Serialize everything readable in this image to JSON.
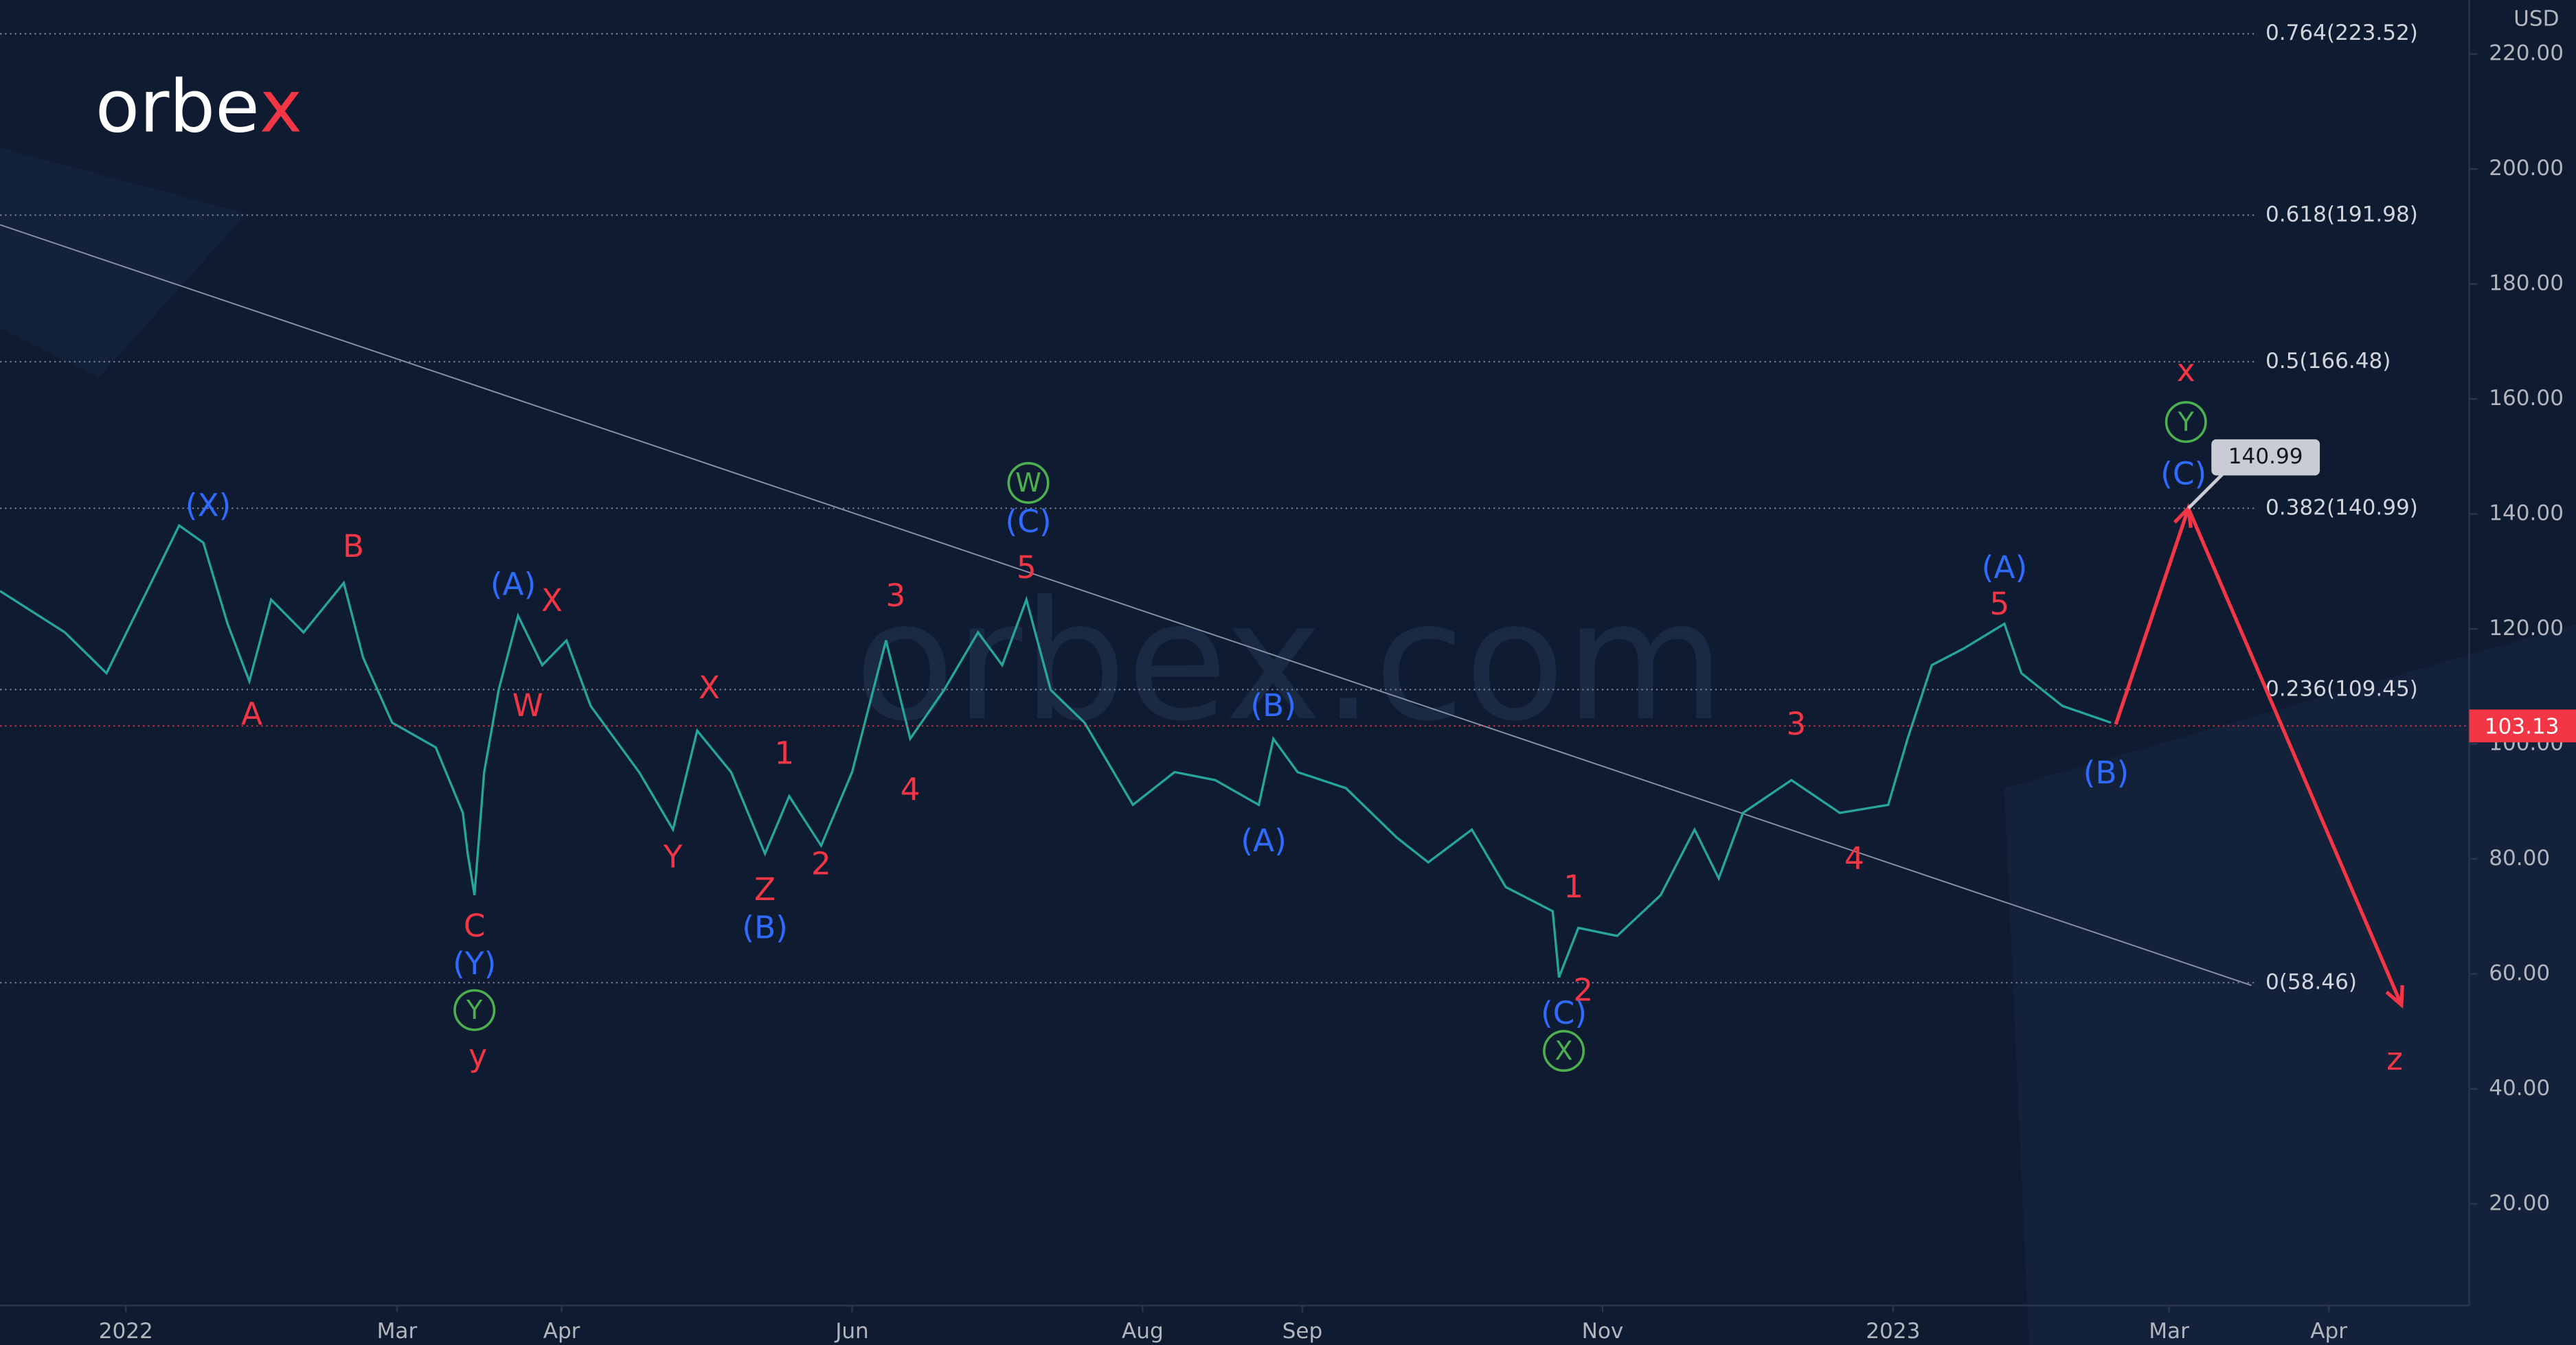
{
  "chart_data": {
    "type": "line",
    "logo_main": "orbe",
    "logo_accent": "x",
    "watermark": "orbex.com",
    "currency": "USD",
    "color": "#26a69a",
    "xlim": [
      -26,
      484
    ],
    "ylim": [
      2.3,
      229.4
    ],
    "xticks": [
      {
        "value": 0,
        "label": "2022"
      },
      {
        "value": 56,
        "label": "Mar"
      },
      {
        "value": 90,
        "label": "Apr"
      },
      {
        "value": 150,
        "label": "Jun"
      },
      {
        "value": 210,
        "label": "Aug"
      },
      {
        "value": 243,
        "label": "Sep"
      },
      {
        "value": 305,
        "label": "Nov"
      },
      {
        "value": 365,
        "label": "2023"
      },
      {
        "value": 422,
        "label": "Mar"
      },
      {
        "value": 455,
        "label": "Apr"
      }
    ],
    "yticks": [
      {
        "value": 20,
        "label": "20.00"
      },
      {
        "value": 40,
        "label": "40.00"
      },
      {
        "value": 60,
        "label": "60.00"
      },
      {
        "value": 80,
        "label": "80.00"
      },
      {
        "value": 100,
        "label": "100.00"
      },
      {
        "value": 120,
        "label": "120.00"
      },
      {
        "value": 140,
        "label": "140.00"
      },
      {
        "value": 160,
        "label": "160.00"
      },
      {
        "value": 180,
        "label": "180.00"
      },
      {
        "value": 200,
        "label": "200.00"
      },
      {
        "value": 220,
        "label": "220.00"
      }
    ],
    "x": [
      -26,
      -12.6,
      -4,
      6,
      11,
      16,
      21,
      25.5,
      30,
      36.7,
      45,
      49,
      55,
      64,
      69.6,
      70.6,
      72,
      74,
      77,
      81,
      86,
      91,
      96,
      106,
      113,
      118,
      125,
      132,
      137,
      143.6,
      150,
      157,
      162,
      169,
      176,
      181,
      186,
      191,
      198,
      208,
      216.6,
      225,
      234,
      237,
      242,
      252,
      262.5,
      269,
      278,
      285,
      294.7,
      296,
      300,
      308,
      317,
      324,
      329,
      334,
      344,
      354,
      364,
      368,
      373,
      379.6,
      388,
      391.5,
      400,
      410
    ],
    "values": [
      126.6,
      119.4,
      112.3,
      129.4,
      138,
      135,
      120.9,
      110.9,
      125.1,
      119.4,
      128,
      115,
      103.7,
      99.4,
      88,
      80.9,
      73.7,
      95.1,
      109.4,
      122.3,
      113.7,
      118,
      106.6,
      95.1,
      85.1,
      102.3,
      95.1,
      80.9,
      90.9,
      82.3,
      95.1,
      118,
      100.9,
      109.4,
      119.4,
      113.7,
      125.1,
      109.4,
      103.7,
      89.4,
      95.1,
      93.7,
      89.4,
      100.9,
      95.1,
      92.3,
      83.7,
      79.4,
      85.1,
      75.1,
      70.9,
      59.4,
      68,
      66.6,
      73.7,
      85.1,
      76.6,
      88,
      93.7,
      88,
      89.4,
      100.9,
      113.7,
      116.6,
      120.9,
      112.3,
      106.6,
      103.7
    ],
    "trendline": {
      "x": [
        -26,
        439
      ],
      "values": [
        190.3,
        58
      ],
      "color": "#8a93a6"
    },
    "projection": {
      "x": [
        411,
        426,
        470
      ],
      "values": [
        103.4,
        140.99,
        54.6
      ],
      "color": "#f23645"
    },
    "fib_levels": [
      {
        "value": 223.52,
        "label": "0.764(223.52)"
      },
      {
        "value": 191.98,
        "label": "0.618(191.98)"
      },
      {
        "value": 166.48,
        "label": "0.5(166.48)"
      },
      {
        "value": 140.99,
        "label": "0.382(140.99)"
      },
      {
        "value": 109.45,
        "label": "0.236(109.45)"
      },
      {
        "value": 58.46,
        "label": "0(58.46)"
      }
    ],
    "last_price": 103.13,
    "target": 140.99,
    "annotations": [
      {
        "text": "(X)",
        "x": 17,
        "y": 141.4,
        "color": "#2f6bff"
      },
      {
        "text": "B",
        "x": 47,
        "y": 134.3,
        "color": "#f23645"
      },
      {
        "text": "A",
        "x": 26,
        "y": 105.1,
        "color": "#f23645"
      },
      {
        "text": "(A)",
        "x": 80,
        "y": 127.7,
        "color": "#2f6bff"
      },
      {
        "text": "X",
        "x": 88,
        "y": 124.9,
        "color": "#f23645"
      },
      {
        "text": "W",
        "x": 83,
        "y": 106.6,
        "color": "#f23645"
      },
      {
        "text": "C",
        "x": 72,
        "y": 68.3,
        "color": "#f23645"
      },
      {
        "text": "(Y)",
        "x": 72,
        "y": 61.7,
        "color": "#2f6bff"
      },
      {
        "text": "Y",
        "x": 72,
        "y": 53.7,
        "color": "#4caf50",
        "circled": true
      },
      {
        "text": "y",
        "x": 72.7,
        "y": 45.7,
        "color": "#f23645"
      },
      {
        "text": "X",
        "x": 120.5,
        "y": 109.7,
        "color": "#f23645"
      },
      {
        "text": "Y",
        "x": 113,
        "y": 80.3,
        "color": "#f23645"
      },
      {
        "text": "1",
        "x": 136,
        "y": 98.3,
        "color": "#f23645"
      },
      {
        "text": "Z",
        "x": 132,
        "y": 74.6,
        "color": "#f23645"
      },
      {
        "text": "(B)",
        "x": 132,
        "y": 68,
        "color": "#2f6bff"
      },
      {
        "text": "2",
        "x": 143.6,
        "y": 79.1,
        "color": "#f23645"
      },
      {
        "text": "3",
        "x": 159,
        "y": 125.7,
        "color": "#f23645"
      },
      {
        "text": "4",
        "x": 162,
        "y": 92,
        "color": "#f23645"
      },
      {
        "text": "W",
        "x": 186.4,
        "y": 145.4,
        "color": "#4caf50",
        "circled": true
      },
      {
        "text": "(C)",
        "x": 186.4,
        "y": 138.6,
        "color": "#2f6bff"
      },
      {
        "text": "5",
        "x": 186,
        "y": 130.6,
        "color": "#f23645"
      },
      {
        "text": "(B)",
        "x": 237,
        "y": 106.6,
        "color": "#2f6bff"
      },
      {
        "text": "(A)",
        "x": 235,
        "y": 83.1,
        "color": "#2f6bff"
      },
      {
        "text": "1",
        "x": 299,
        "y": 75.1,
        "color": "#f23645"
      },
      {
        "text": "2",
        "x": 301,
        "y": 57.1,
        "color": "#f23645"
      },
      {
        "text": "(C)",
        "x": 297,
        "y": 53.1,
        "color": "#2f6bff"
      },
      {
        "text": "X",
        "x": 297,
        "y": 46.6,
        "color": "#4caf50",
        "circled": true
      },
      {
        "text": "3",
        "x": 345,
        "y": 103.4,
        "color": "#f23645"
      },
      {
        "text": "4",
        "x": 357,
        "y": 80,
        "color": "#f23645"
      },
      {
        "text": "(A)",
        "x": 388,
        "y": 130.6,
        "color": "#2f6bff"
      },
      {
        "text": "5",
        "x": 387,
        "y": 124.3,
        "color": "#f23645"
      },
      {
        "text": "(B)",
        "x": 409,
        "y": 94.9,
        "color": "#2f6bff"
      },
      {
        "text": "(C)",
        "x": 425,
        "y": 146.9,
        "color": "#2f6bff"
      },
      {
        "text": "Y",
        "x": 425.5,
        "y": 156,
        "color": "#4caf50",
        "circled": true
      },
      {
        "text": "x",
        "x": 425.5,
        "y": 164.9,
        "color": "#f23645"
      },
      {
        "text": "z",
        "x": 468.6,
        "y": 45.1,
        "color": "#f23645"
      }
    ]
  }
}
